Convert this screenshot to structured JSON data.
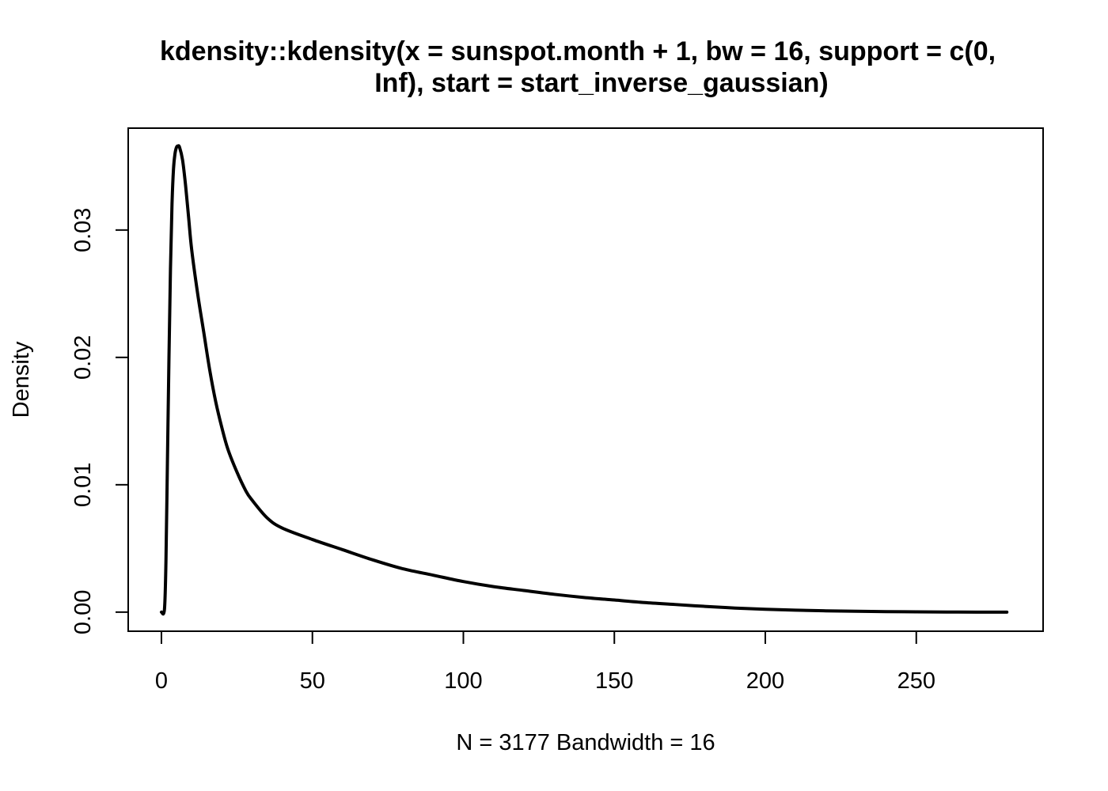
{
  "chart_data": {
    "type": "line",
    "title_line1": "kdensity::kdensity(x = sunspot.month + 1, bw = 16, support = c(0,",
    "title_line2": "Inf), start = start_inverse_gaussian)",
    "xlabel": "N = 3177   Bandwidth = 16",
    "ylabel": "Density",
    "xlim": [
      -11,
      292
    ],
    "ylim": [
      -0.0015,
      0.038
    ],
    "x_ticks": [
      0,
      50,
      100,
      150,
      200,
      250
    ],
    "x_tick_labels": [
      "0",
      "50",
      "100",
      "150",
      "200",
      "250"
    ],
    "y_ticks": [
      0.0,
      0.01,
      0.02,
      0.03
    ],
    "y_tick_labels": [
      "0.00",
      "0.01",
      "0.02",
      "0.03"
    ],
    "grid": false,
    "line_color": "#000000",
    "series": [
      {
        "x": [
          0,
          1,
          1.5,
          2,
          2.5,
          3,
          3.5,
          4,
          4.5,
          5,
          5.5,
          6,
          7,
          8,
          9,
          10,
          12,
          14,
          16,
          18,
          20,
          22,
          25,
          28,
          30,
          35,
          40,
          50,
          60,
          70,
          80,
          90,
          100,
          110,
          120,
          130,
          140,
          150,
          160,
          170,
          180,
          190,
          200,
          210,
          220,
          230,
          240,
          250,
          260,
          270,
          280
        ],
        "y": [
          0.0,
          0.0002,
          0.004,
          0.012,
          0.02,
          0.027,
          0.032,
          0.0348,
          0.036,
          0.0365,
          0.0366,
          0.0365,
          0.0355,
          0.0335,
          0.031,
          0.0285,
          0.025,
          0.022,
          0.019,
          0.0165,
          0.0145,
          0.0128,
          0.011,
          0.0095,
          0.0088,
          0.0074,
          0.0066,
          0.0057,
          0.0049,
          0.0041,
          0.0034,
          0.0029,
          0.0024,
          0.002,
          0.0017,
          0.0014,
          0.00115,
          0.00095,
          0.00075,
          0.0006,
          0.00045,
          0.00032,
          0.00022,
          0.00015,
          0.0001,
          7e-05,
          4e-05,
          2e-05,
          1e-05,
          0.0,
          0.0
        ]
      }
    ]
  }
}
